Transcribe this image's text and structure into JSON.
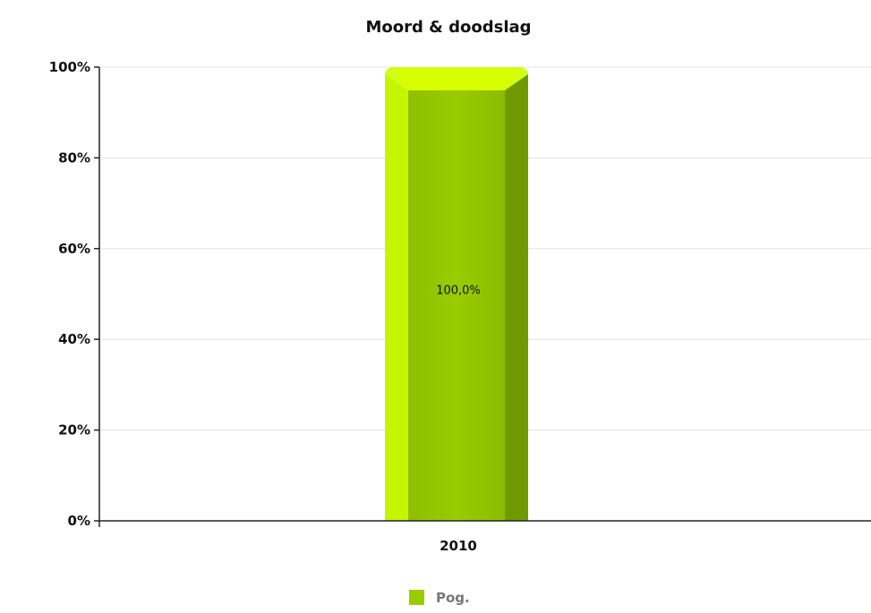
{
  "chart_data": {
    "type": "bar",
    "title": "Moord & doodslag",
    "categories": [
      "2010"
    ],
    "series": [
      {
        "name": "Pog.",
        "values": [
          100.0
        ],
        "color": "#99cc00",
        "data_labels": [
          "100,0%"
        ]
      }
    ],
    "ylim": [
      0,
      100
    ],
    "y_ticks": [
      0,
      20,
      40,
      60,
      80,
      100
    ],
    "y_tick_labels": [
      "0%",
      "20%",
      "40%",
      "60%",
      "80%",
      "100%"
    ],
    "xlabel": "",
    "ylabel": "",
    "grid": true,
    "legend_position": "bottom-center",
    "style": "3d-bevel"
  }
}
